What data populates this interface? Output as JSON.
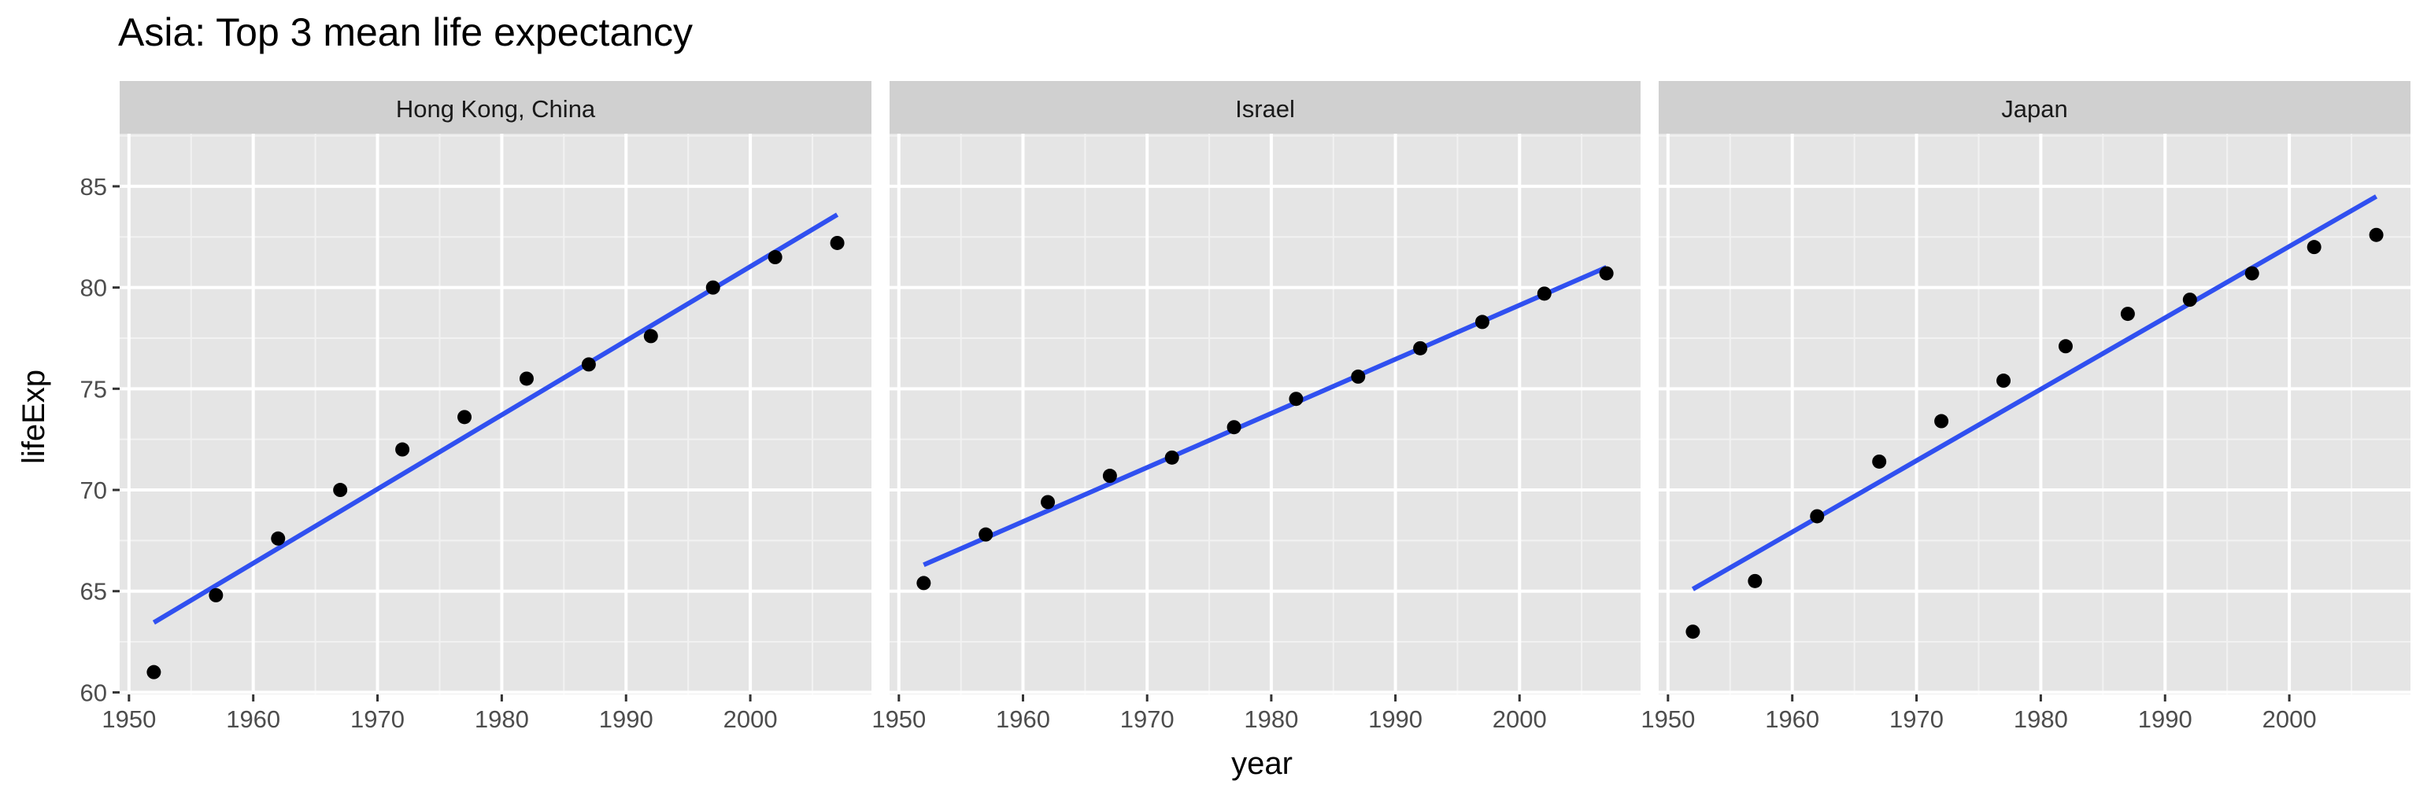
{
  "chart_data": {
    "type": "scatter",
    "title": "Asia: Top 3 mean life expectancy",
    "xlabel": "year",
    "ylabel": "lifeExp",
    "xlim": [
      1949.25,
      2009.75
    ],
    "ylim": [
      59.9,
      87.6
    ],
    "x_ticks": [
      1950,
      1960,
      1970,
      1980,
      1990,
      2000
    ],
    "y_ticks": [
      60,
      65,
      70,
      75,
      80,
      85
    ],
    "grid": true,
    "point_color": "#000000",
    "fit_line_color": "#3050f0",
    "panel_background": "#e5e5e5",
    "strip_background": "#d0d0d0",
    "facets": [
      {
        "name": "Hong Kong, China",
        "x": [
          1952,
          1957,
          1962,
          1967,
          1972,
          1977,
          1982,
          1987,
          1992,
          1997,
          2002,
          2007
        ],
        "y": [
          61.0,
          64.8,
          67.6,
          70.0,
          72.0,
          73.6,
          75.5,
          76.2,
          77.6,
          80.0,
          81.5,
          82.2
        ],
        "fit": [
          [
            1952,
            63.45
          ],
          [
            2007,
            83.6
          ]
        ]
      },
      {
        "name": "Israel",
        "x": [
          1952,
          1957,
          1962,
          1967,
          1972,
          1977,
          1982,
          1987,
          1992,
          1997,
          2002,
          2007
        ],
        "y": [
          65.4,
          67.8,
          69.4,
          70.7,
          71.6,
          73.1,
          74.5,
          75.6,
          77.0,
          78.3,
          79.7,
          80.7
        ],
        "fit": [
          [
            1952,
            66.3
          ],
          [
            2007,
            81.0
          ]
        ]
      },
      {
        "name": "Japan",
        "x": [
          1952,
          1957,
          1962,
          1967,
          1972,
          1977,
          1982,
          1987,
          1992,
          1997,
          2002,
          2007
        ],
        "y": [
          63.0,
          65.5,
          68.7,
          71.4,
          73.4,
          75.4,
          77.1,
          78.7,
          79.4,
          80.7,
          82.0,
          82.6
        ],
        "fit": [
          [
            1952,
            65.1
          ],
          [
            2007,
            84.5
          ]
        ]
      }
    ]
  }
}
